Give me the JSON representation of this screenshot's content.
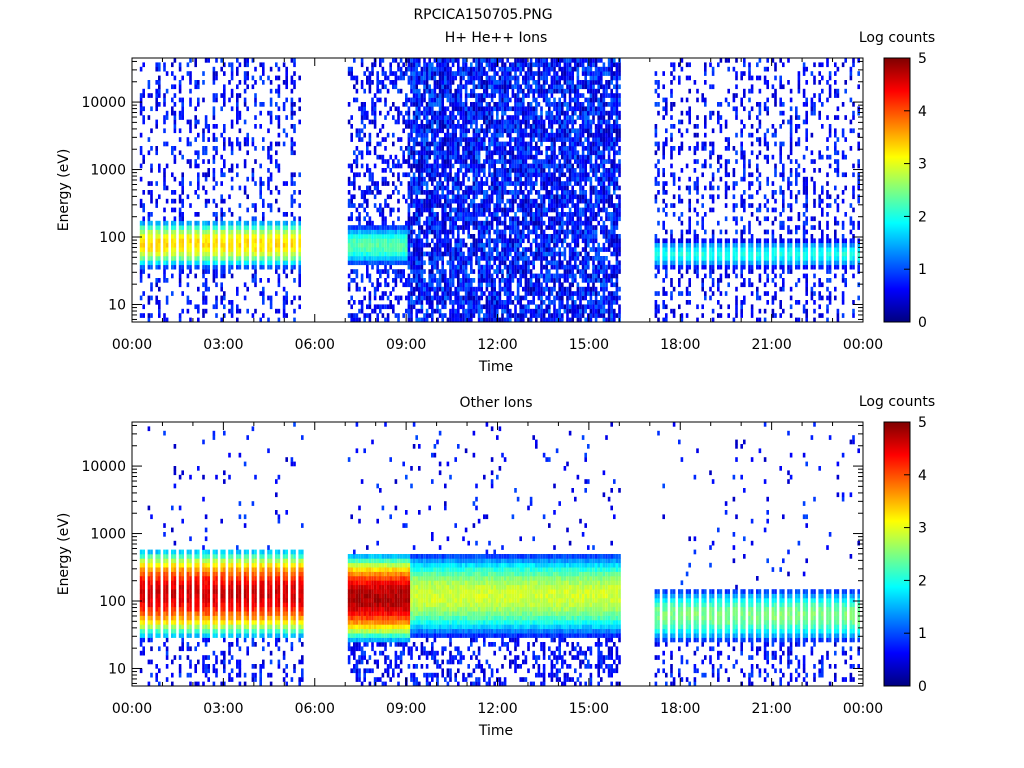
{
  "figure": {
    "title": "RPCICA150705.PNG"
  },
  "colorbar": {
    "label": "Log counts",
    "ticks": [
      "0",
      "1",
      "2",
      "3",
      "4",
      "5"
    ],
    "range": [
      0,
      5
    ],
    "colors": [
      "#00007f",
      "#0000ff",
      "#007fff",
      "#00ffff",
      "#7fff7f",
      "#ffff00",
      "#ff7f00",
      "#ff0000",
      "#7f0000"
    ]
  },
  "chart_data": [
    {
      "type": "heatmap",
      "title": "H+ He++ Ions",
      "xlabel": "Time",
      "ylabel": "Energy (eV)",
      "x_tick_labels": [
        "00:00",
        "03:00",
        "06:00",
        "09:00",
        "12:00",
        "15:00",
        "18:00",
        "21:00",
        "00:00"
      ],
      "xlim_hours": [
        0,
        24
      ],
      "y_tick_labels": [
        "10",
        "100",
        "1000",
        "10000"
      ],
      "ylim_eV": [
        5.5,
        45000
      ],
      "y_scale": "log",
      "colorbar_label": "Log counts",
      "data_gaps_hours": [
        [
          5.6,
          7.0
        ],
        [
          16.0,
          17.0
        ]
      ],
      "band_segments": [
        {
          "start_hour": 0.2,
          "end_hour": 5.5,
          "mode": "striped",
          "energy_low_eV": 35,
          "energy_high_eV": 180,
          "peak_log_counts": 3.3
        },
        {
          "start_hour": 7.0,
          "end_hour": 9.0,
          "mode": "continuous",
          "energy_low_eV": 38,
          "energy_high_eV": 150,
          "peak_log_counts": 2.3
        },
        {
          "start_hour": 9.0,
          "end_hour": 16.0,
          "mode": "speckle",
          "energy_low_eV": 5.5,
          "energy_high_eV": 45000,
          "peak_log_counts": 1.0
        },
        {
          "start_hour": 17.0,
          "end_hour": 23.9,
          "mode": "striped",
          "energy_low_eV": 35,
          "energy_high_eV": 90,
          "peak_log_counts": 2.0
        }
      ]
    },
    {
      "type": "heatmap",
      "title": "Other Ions",
      "xlabel": "Time",
      "ylabel": "Energy (eV)",
      "x_tick_labels": [
        "00:00",
        "03:00",
        "06:00",
        "09:00",
        "12:00",
        "15:00",
        "18:00",
        "21:00",
        "00:00"
      ],
      "xlim_hours": [
        0,
        24
      ],
      "y_tick_labels": [
        "10",
        "100",
        "1000",
        "10000"
      ],
      "ylim_eV": [
        5.5,
        45000
      ],
      "y_scale": "log",
      "colorbar_label": "Log counts",
      "data_gaps_hours": [
        [
          5.6,
          7.0
        ],
        [
          16.0,
          17.0
        ]
      ],
      "band_segments": [
        {
          "start_hour": 0.2,
          "end_hour": 5.6,
          "mode": "striped",
          "energy_low_eV": 28,
          "energy_high_eV": 600,
          "peak_log_counts": 4.6
        },
        {
          "start_hour": 7.0,
          "end_hour": 9.1,
          "mode": "continuous",
          "energy_low_eV": 25,
          "energy_high_eV": 500,
          "peak_log_counts": 4.8
        },
        {
          "start_hour": 9.1,
          "end_hour": 16.0,
          "mode": "continuous",
          "energy_low_eV": 30,
          "energy_high_eV": 500,
          "peak_log_counts": 2.9
        },
        {
          "start_hour": 17.0,
          "end_hour": 23.9,
          "mode": "striped",
          "energy_low_eV": 25,
          "energy_high_eV": 150,
          "peak_log_counts": 2.5
        }
      ]
    }
  ]
}
